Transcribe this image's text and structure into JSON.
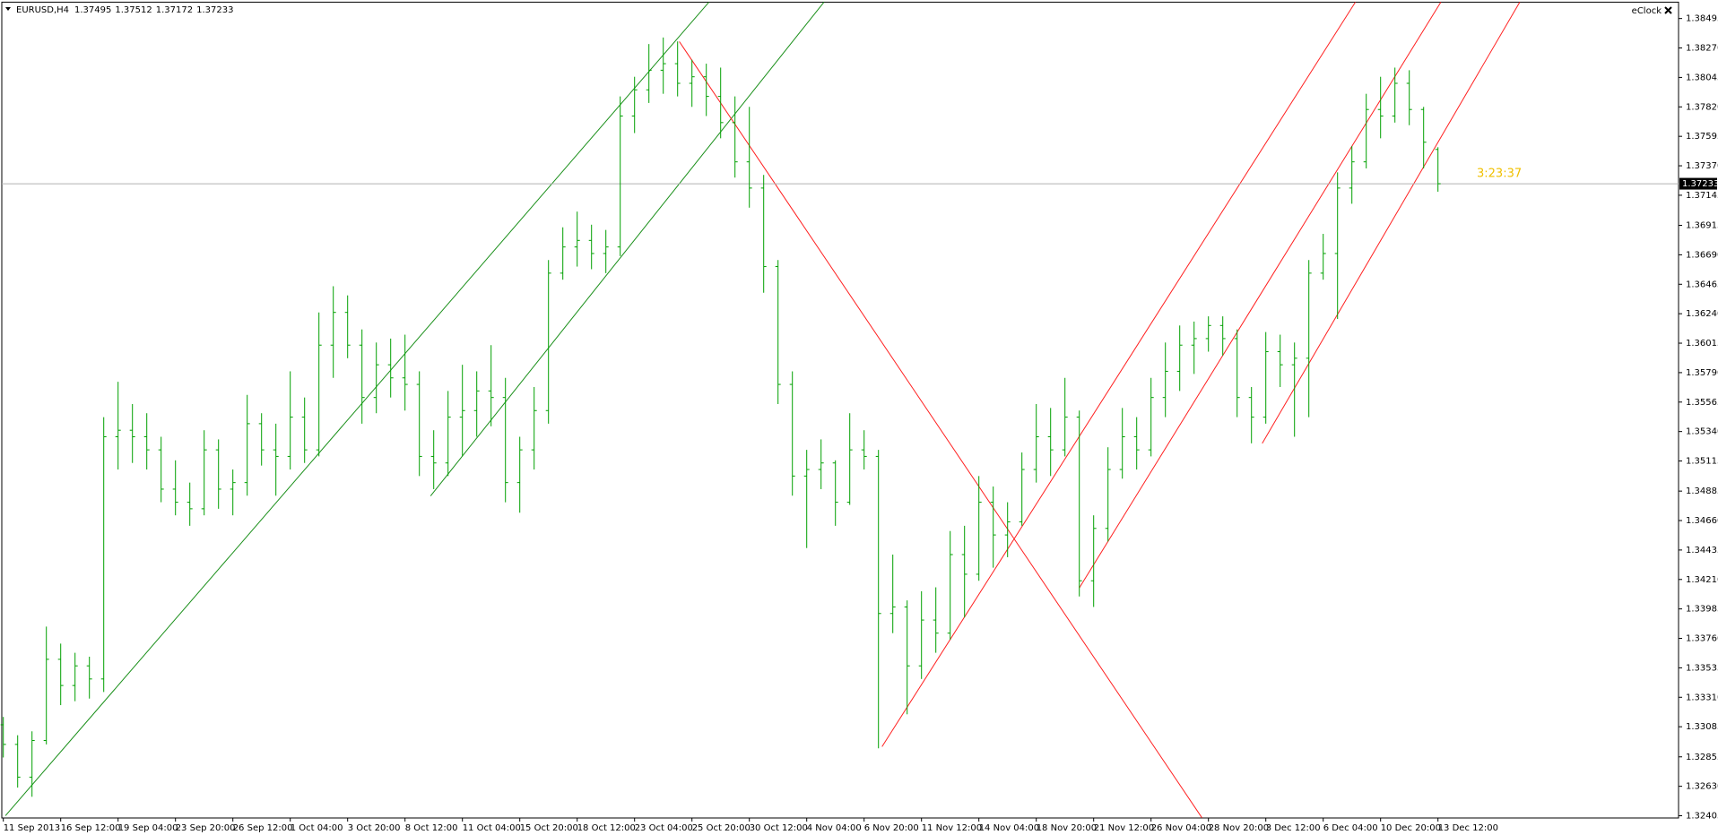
{
  "chart_data": {
    "type": "ohlc",
    "symbol": "EURUSD,H4",
    "color": "#00a000",
    "categories": [
      "11 Sep 2013",
      null,
      null,
      null,
      "16 Sep 12:00",
      null,
      null,
      null,
      "19 Sep 04:00",
      null,
      null,
      null,
      "23 Sep 20:00",
      null,
      null,
      null,
      "26 Sep 12:00",
      null,
      null,
      null,
      "1 Oct 04:00",
      null,
      null,
      null,
      "3 Oct 20:00",
      null,
      null,
      null,
      "8 Oct 12:00",
      null,
      null,
      null,
      "11 Oct 04:00",
      null,
      null,
      null,
      "15 Oct 20:00",
      null,
      null,
      null,
      "18 Oct 12:00",
      null,
      null,
      null,
      "23 Oct 04:00",
      null,
      null,
      null,
      "25 Oct 20:00",
      null,
      null,
      null,
      "30 Oct 12:00",
      null,
      null,
      null,
      "4 Nov 04:00",
      null,
      null,
      null,
      "6 Nov 20:00",
      null,
      null,
      null,
      "11 Nov 12:00",
      null,
      null,
      null,
      "14 Nov 04:00",
      null,
      null,
      null,
      "18 Nov 20:00",
      null,
      null,
      null,
      "21 Nov 12:00",
      null,
      null,
      null,
      "26 Nov 04:00",
      null,
      null,
      null,
      "28 Nov 20:00",
      null,
      null,
      null,
      "3 Dec 12:00",
      null,
      null,
      null,
      "6 Dec 04:00",
      null,
      null,
      null,
      "10 Dec 20:00",
      null,
      null,
      null,
      "13 Dec 12:00"
    ],
    "open": [
      1.331,
      1.3295,
      1.327,
      1.3298,
      1.336,
      1.334,
      1.3355,
      1.3345,
      1.353,
      1.3535,
      1.353,
      1.352,
      1.349,
      1.348,
      1.3475,
      1.352,
      1.349,
      1.3495,
      1.354,
      1.352,
      1.3515,
      1.3545,
      1.352,
      1.36,
      1.3625,
      1.36,
      1.356,
      1.3585,
      1.3575,
      1.357,
      1.3515,
      1.351,
      1.3545,
      1.355,
      1.3565,
      1.356,
      1.3495,
      1.352,
      1.355,
      1.3655,
      1.3675,
      1.368,
      1.367,
      1.3675,
      1.3775,
      1.3795,
      1.381,
      1.3815,
      1.38,
      1.3805,
      1.379,
      1.377,
      1.374,
      1.372,
      1.366,
      1.357,
      1.35,
      1.3505,
      1.351,
      1.348,
      1.352,
      1.3515,
      1.3395,
      1.34,
      1.3355,
      1.339,
      1.338,
      1.344,
      1.3425,
      1.348,
      1.3455,
      1.3465,
      1.3505,
      1.353,
      1.352,
      1.3545,
      1.342,
      1.346,
      1.3505,
      1.353,
      1.352,
      1.356,
      1.358,
      1.36,
      1.3605,
      1.3615,
      1.3605,
      1.356,
      1.3545,
      1.3595,
      1.3585,
      1.359,
      1.3655,
      1.367,
      1.372,
      1.374,
      1.378,
      1.3775,
      1.38,
      1.378,
      1.37495
    ],
    "high": [
      1.3316,
      1.3302,
      1.3305,
      1.3385,
      1.3372,
      1.3365,
      1.3362,
      1.3545,
      1.3572,
      1.3555,
      1.3548,
      1.353,
      1.3512,
      1.3495,
      1.3535,
      1.3528,
      1.3505,
      1.3562,
      1.3548,
      1.354,
      1.358,
      1.356,
      1.3625,
      1.3645,
      1.3638,
      1.3612,
      1.3602,
      1.3605,
      1.3608,
      1.358,
      1.3535,
      1.3565,
      1.3585,
      1.358,
      1.36,
      1.3575,
      1.353,
      1.3568,
      1.3665,
      1.369,
      1.3702,
      1.3692,
      1.3688,
      1.379,
      1.3805,
      1.383,
      1.3835,
      1.3832,
      1.3818,
      1.3815,
      1.3812,
      1.379,
      1.3782,
      1.373,
      1.3665,
      1.358,
      1.352,
      1.3528,
      1.3512,
      1.3548,
      1.3535,
      1.352,
      1.344,
      1.3405,
      1.3412,
      1.3415,
      1.3458,
      1.3462,
      1.35,
      1.3492,
      1.348,
      1.3518,
      1.3555,
      1.3552,
      1.3575,
      1.355,
      1.347,
      1.3522,
      1.3552,
      1.3545,
      1.3575,
      1.3602,
      1.3615,
      1.3618,
      1.3622,
      1.3622,
      1.3612,
      1.3568,
      1.361,
      1.3608,
      1.3602,
      1.3665,
      1.3685,
      1.3732,
      1.3752,
      1.3792,
      1.3805,
      1.3812,
      1.381,
      1.3782,
      1.37512
    ],
    "low": [
      1.3285,
      1.3262,
      1.3255,
      1.3295,
      1.3325,
      1.3328,
      1.333,
      1.3335,
      1.3505,
      1.351,
      1.3505,
      1.348,
      1.347,
      1.3462,
      1.347,
      1.3475,
      1.347,
      1.3485,
      1.3508,
      1.3485,
      1.3505,
      1.351,
      1.3515,
      1.3575,
      1.359,
      1.354,
      1.3548,
      1.356,
      1.355,
      1.35,
      1.349,
      1.35,
      1.3515,
      1.353,
      1.3538,
      1.348,
      1.3472,
      1.3505,
      1.354,
      1.365,
      1.366,
      1.3658,
      1.3655,
      1.3668,
      1.3762,
      1.3785,
      1.3792,
      1.379,
      1.3782,
      1.3775,
      1.3758,
      1.3728,
      1.3705,
      1.364,
      1.3555,
      1.3485,
      1.3445,
      1.349,
      1.3462,
      1.3478,
      1.3505,
      1.3292,
      1.338,
      1.3318,
      1.3345,
      1.3365,
      1.3375,
      1.3392,
      1.342,
      1.343,
      1.3438,
      1.3462,
      1.3495,
      1.35,
      1.3515,
      1.3408,
      1.34,
      1.345,
      1.3498,
      1.3505,
      1.3515,
      1.3545,
      1.3565,
      1.3578,
      1.3595,
      1.3592,
      1.3545,
      1.3525,
      1.354,
      1.3568,
      1.353,
      1.3545,
      1.365,
      1.362,
      1.3708,
      1.3735,
      1.3758,
      1.377,
      1.3768,
      1.3735,
      1.37172
    ],
    "close": [
      1.3295,
      1.327,
      1.3298,
      1.336,
      1.334,
      1.3355,
      1.3345,
      1.353,
      1.3535,
      1.353,
      1.352,
      1.349,
      1.348,
      1.3475,
      1.352,
      1.349,
      1.3495,
      1.354,
      1.352,
      1.3515,
      1.3545,
      1.352,
      1.36,
      1.3625,
      1.36,
      1.356,
      1.3585,
      1.3575,
      1.357,
      1.3515,
      1.351,
      1.3545,
      1.355,
      1.3565,
      1.356,
      1.3495,
      1.352,
      1.355,
      1.3655,
      1.3675,
      1.368,
      1.367,
      1.3675,
      1.3775,
      1.3795,
      1.381,
      1.3815,
      1.38,
      1.3805,
      1.379,
      1.377,
      1.374,
      1.372,
      1.366,
      1.357,
      1.35,
      1.3505,
      1.351,
      1.348,
      1.352,
      1.3515,
      1.3395,
      1.34,
      1.3355,
      1.339,
      1.338,
      1.344,
      1.3425,
      1.348,
      1.3455,
      1.3465,
      1.3505,
      1.353,
      1.352,
      1.3545,
      1.342,
      1.346,
      1.3505,
      1.353,
      1.352,
      1.356,
      1.358,
      1.36,
      1.3605,
      1.3615,
      1.3605,
      1.356,
      1.3545,
      1.3595,
      1.3585,
      1.359,
      1.3655,
      1.367,
      1.372,
      1.374,
      1.378,
      1.3775,
      1.38,
      1.378,
      1.3755,
      1.37233
    ],
    "ylim": [
      1.32388,
      1.3862
    ],
    "yticks": [
      1.38495,
      {
        "value": 1.3827,
        "label": "1.38270"
      },
      1.38045,
      {
        "value": 1.3782,
        "label": "1.37820"
      },
      1.37595,
      {
        "value": 1.3737,
        "label": "1.37370"
      },
      1.37145,
      1.36915,
      {
        "value": 1.3669,
        "label": "1.36690"
      },
      1.36465,
      {
        "value": 1.3624,
        "label": "1.36240"
      },
      1.36015,
      {
        "value": 1.3579,
        "label": "1.35790"
      },
      1.35565,
      {
        "value": 1.3534,
        "label": "1.35340"
      },
      1.35115,
      1.34885,
      {
        "value": 1.3466,
        "label": "1.34660"
      },
      1.34435,
      {
        "value": 1.3421,
        "label": "1.34210"
      },
      1.33985,
      {
        "value": 1.3376,
        "label": "1.33760"
      },
      1.33535,
      {
        "value": 1.3331,
        "label": "1.33310"
      },
      1.33085,
      1.32855,
      {
        "value": 1.3263,
        "label": "1.32630"
      },
      1.32405
    ],
    "grid": false,
    "clock": {
      "label": "eClock",
      "time": "3:23:37"
    }
  }
}
